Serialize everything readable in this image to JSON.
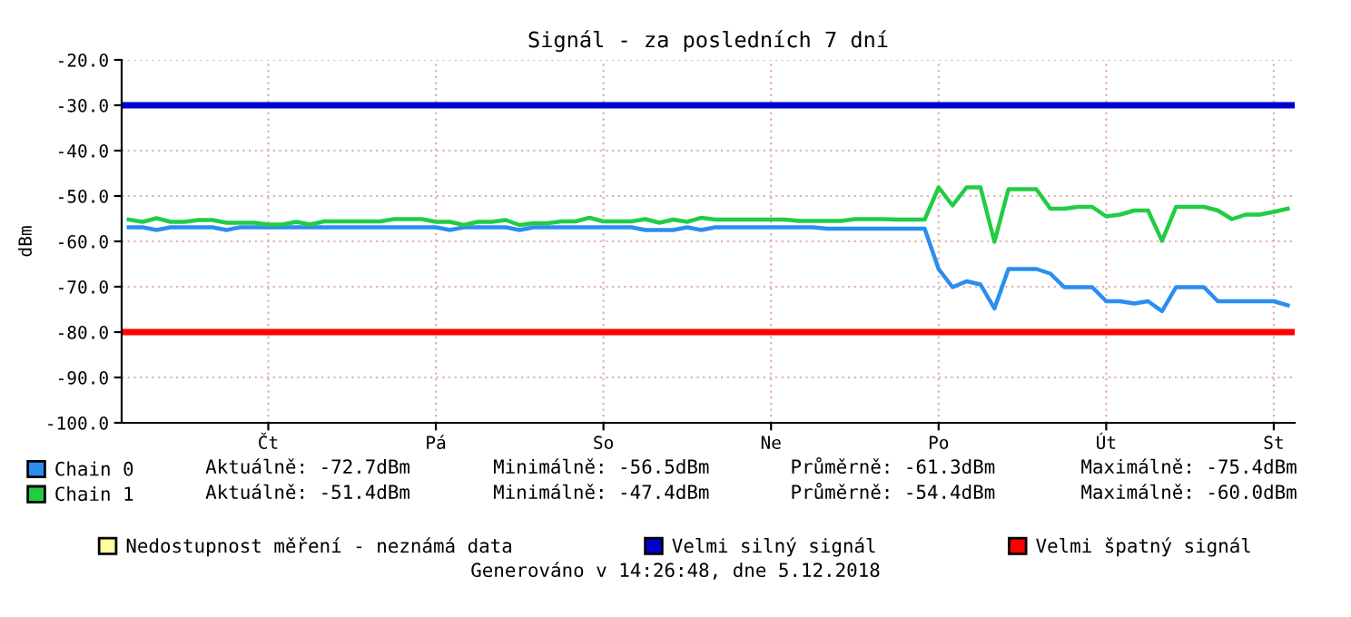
{
  "chart_data": {
    "type": "line",
    "title": "Signál - za posledních 7 dní",
    "ylabel": "dBm",
    "categories": [
      null,
      null,
      null,
      null,
      null,
      null,
      null,
      null,
      null,
      null,
      "Čt",
      null,
      null,
      null,
      null,
      null,
      null,
      null,
      null,
      null,
      null,
      null,
      "Pá",
      null,
      null,
      null,
      null,
      null,
      null,
      null,
      null,
      null,
      null,
      null,
      "So",
      null,
      null,
      null,
      null,
      null,
      null,
      null,
      null,
      null,
      null,
      null,
      "Ne",
      null,
      null,
      null,
      null,
      null,
      null,
      null,
      null,
      null,
      null,
      null,
      "Po",
      null,
      null,
      null,
      null,
      null,
      null,
      null,
      null,
      null,
      null,
      null,
      "Út",
      null,
      null,
      null,
      null,
      null,
      null,
      null,
      null,
      null,
      null,
      null,
      "St",
      null
    ],
    "ylim": [
      -100,
      -20
    ],
    "yticks": [
      {
        "value": -20,
        "label": "-20.0"
      },
      {
        "value": -30,
        "label": "-30.0"
      },
      {
        "value": -40,
        "label": "-40.0"
      },
      {
        "value": -50,
        "label": "-50.0"
      },
      {
        "value": -60,
        "label": "-60.0"
      },
      {
        "value": -70,
        "label": "-70.0"
      },
      {
        "value": -80,
        "label": "-80.0"
      },
      {
        "value": -90,
        "label": "-90.0"
      },
      {
        "value": -100,
        "label": "-100.0"
      }
    ],
    "grid": true,
    "legend": "bottom",
    "marker": "none",
    "line_style": "solid",
    "ref_lines": [
      {
        "axis": "y",
        "value": -30,
        "label": "Velmi silný signál",
        "color": "#0000cc"
      },
      {
        "axis": "y",
        "value": -80,
        "label": "Velmi špatný signál",
        "color": "#ff0000"
      }
    ],
    "series": [
      {
        "name": "Chain 0",
        "color": "#2a8ef0",
        "values": [
          -56.9,
          -56.9,
          -57.5,
          -56.9,
          -56.9,
          -56.9,
          -56.9,
          -57.5,
          -56.9,
          -56.9,
          -56.9,
          -56.9,
          -56.9,
          -56.9,
          -56.9,
          -56.9,
          -56.9,
          -56.9,
          -56.9,
          -56.9,
          -56.9,
          -56.9,
          -56.9,
          -57.5,
          -56.9,
          -56.9,
          -56.9,
          -56.9,
          -57.5,
          -56.9,
          -56.9,
          -56.9,
          -56.9,
          -56.9,
          -56.9,
          -56.9,
          -56.9,
          -57.5,
          -57.5,
          -57.5,
          -56.9,
          -57.5,
          -56.9,
          -56.9,
          -56.9,
          -56.9,
          -56.9,
          -56.9,
          -56.9,
          -56.9,
          -57.2,
          -57.2,
          -57.2,
          -57.2,
          -57.2,
          -57.2,
          -57.2,
          -57.2,
          -66.1,
          -70.1,
          -68.8,
          -69.5,
          -74.8,
          -66.1,
          -66.1,
          -66.1,
          -67.1,
          -70.1,
          -70.1,
          -70.1,
          -73.2,
          -73.2,
          -73.7,
          -73.2,
          -75.4,
          -70.1,
          -70.1,
          -70.1,
          -73.2,
          -73.2,
          -73.2,
          -73.2,
          -73.2,
          -74.1
        ]
      },
      {
        "name": "Chain 1",
        "color": "#22cc44",
        "values": [
          -55.2,
          -55.7,
          -54.9,
          -55.7,
          -55.7,
          -55.3,
          -55.3,
          -55.9,
          -55.9,
          -55.9,
          -56.3,
          -56.3,
          -55.7,
          -56.3,
          -55.6,
          -55.6,
          -55.6,
          -55.6,
          -55.6,
          -55.1,
          -55.1,
          -55.1,
          -55.7,
          -55.7,
          -56.4,
          -55.7,
          -55.7,
          -55.3,
          -56.4,
          -56.0,
          -56.0,
          -55.6,
          -55.6,
          -54.8,
          -55.6,
          -55.6,
          -55.6,
          -55.1,
          -55.9,
          -55.2,
          -55.7,
          -54.8,
          -55.2,
          -55.2,
          -55.2,
          -55.2,
          -55.2,
          -55.2,
          -55.5,
          -55.5,
          -55.5,
          -55.5,
          -55.1,
          -55.1,
          -55.1,
          -55.2,
          -55.2,
          -55.2,
          -48.1,
          -52.1,
          -48.1,
          -48.1,
          -60.1,
          -48.5,
          -48.5,
          -48.5,
          -52.8,
          -52.8,
          -52.4,
          -52.4,
          -54.5,
          -54.1,
          -53.2,
          -53.2,
          -59.9,
          -52.4,
          -52.4,
          -52.4,
          -53.2,
          -55.1,
          -54.1,
          -54.1,
          -53.5,
          -52.8
        ]
      },
      {
        "name": "Nedostupnost měření - neznámá data",
        "color": "#ffffa0",
        "type": "area",
        "values": [
          null,
          null,
          null,
          null,
          null,
          null,
          null,
          null,
          null,
          null,
          null,
          null,
          null,
          null,
          null,
          null,
          null,
          null,
          null,
          null,
          null,
          null,
          null,
          null,
          null,
          null,
          null,
          null,
          null,
          null,
          null,
          null,
          null,
          null,
          null,
          null,
          null,
          null,
          null,
          null,
          null,
          null,
          null,
          null,
          null,
          null,
          null,
          null,
          null,
          null,
          null,
          null,
          null,
          null,
          null,
          null,
          null,
          null,
          null,
          null,
          null,
          null,
          null,
          null,
          null,
          null,
          null,
          null,
          null,
          null,
          null,
          null,
          null,
          null,
          null,
          null,
          null,
          null,
          null,
          null,
          null,
          null,
          null,
          null
        ]
      }
    ],
    "annotations": [
      "Aktuálně: -72.7dBm",
      "Minimálně: -56.5dBm",
      "Průměrně: -61.3dBm",
      "Maximálně: -75.4dBm",
      "Aktuálně: -51.4dBm",
      "Minimálně: -47.4dBm",
      "Průměrně: -54.4dBm",
      "Maximálně: -60.0dBm",
      "Generováno v 14:26:48, dne 5.12.2018"
    ]
  }
}
